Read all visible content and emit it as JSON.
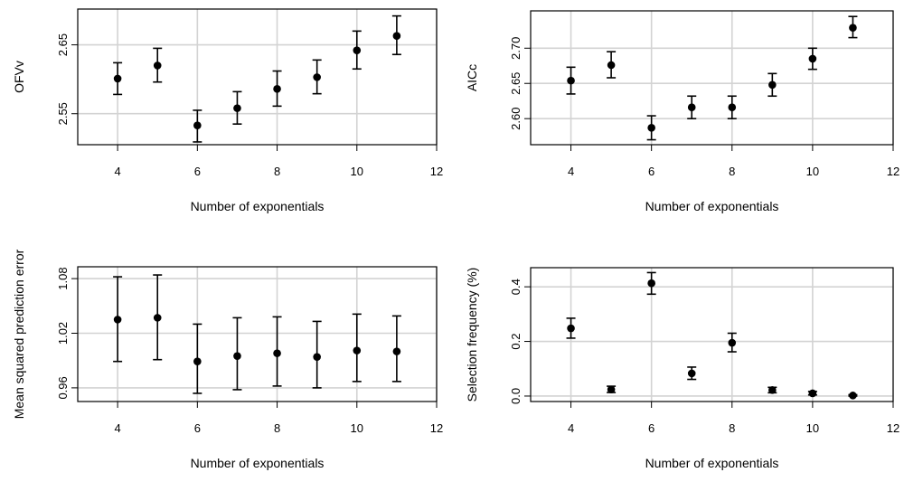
{
  "chart_data": [
    {
      "type": "scatter",
      "ylabel": "OFVv",
      "xlabel": "Number of exponentials",
      "xlim": [
        3,
        12
      ],
      "ylim": [
        2.505,
        2.702
      ],
      "xticks": [
        4,
        6,
        8,
        10,
        12
      ],
      "yticks": [
        2.55,
        2.65
      ],
      "ytick_labels": [
        "2.55",
        "2.65"
      ],
      "grid": true,
      "series": [
        {
          "x": [
            4,
            5,
            6,
            7,
            8,
            9,
            10,
            11
          ],
          "y": [
            2.601,
            2.62,
            2.533,
            2.558,
            2.586,
            2.603,
            2.642,
            2.663
          ],
          "lower": [
            2.578,
            2.596,
            2.509,
            2.535,
            2.561,
            2.579,
            2.615,
            2.636
          ],
          "upper": [
            2.624,
            2.645,
            2.555,
            2.582,
            2.612,
            2.628,
            2.67,
            2.692
          ]
        }
      ]
    },
    {
      "type": "scatter",
      "ylabel": "AICc",
      "xlabel": "Number of exponentials",
      "xlim": [
        3,
        12
      ],
      "ylim": [
        2.563,
        2.753
      ],
      "xticks": [
        4,
        6,
        8,
        10,
        12
      ],
      "yticks": [
        2.6,
        2.65,
        2.7
      ],
      "ytick_labels": [
        "2.60",
        "2.65",
        "2.70"
      ],
      "grid": true,
      "series": [
        {
          "x": [
            4,
            5,
            6,
            7,
            8,
            9,
            10,
            11
          ],
          "y": [
            2.654,
            2.676,
            2.587,
            2.616,
            2.616,
            2.648,
            2.685,
            2.729
          ],
          "lower": [
            2.635,
            2.658,
            2.57,
            2.6,
            2.6,
            2.632,
            2.67,
            2.715
          ],
          "upper": [
            2.673,
            2.695,
            2.604,
            2.632,
            2.632,
            2.664,
            2.7,
            2.745
          ]
        }
      ]
    },
    {
      "type": "scatter",
      "ylabel": "Mean squared prediction error",
      "xlabel": "Number of exponentials",
      "xlim": [
        3,
        12
      ],
      "ylim": [
        0.945,
        1.093
      ],
      "xticks": [
        4,
        6,
        8,
        10,
        12
      ],
      "yticks": [
        0.96,
        1.02,
        1.08
      ],
      "ytick_labels": [
        "0.96",
        "1.02",
        "1.08"
      ],
      "grid": true,
      "series": [
        {
          "x": [
            4,
            5,
            6,
            7,
            8,
            9,
            10,
            11
          ],
          "y": [
            1.035,
            1.037,
            0.989,
            0.995,
            0.998,
            0.994,
            1.001,
            1.0
          ],
          "lower": [
            0.989,
            0.991,
            0.954,
            0.958,
            0.962,
            0.96,
            0.967,
            0.967
          ],
          "upper": [
            1.082,
            1.084,
            1.03,
            1.037,
            1.038,
            1.033,
            1.041,
            1.039
          ]
        }
      ]
    },
    {
      "type": "scatter",
      "ylabel": "Selection frequency (%)",
      "xlabel": "Number of exponentials",
      "xlim": [
        3,
        12
      ],
      "ylim": [
        -0.02,
        0.47
      ],
      "xticks": [
        4,
        6,
        8,
        10,
        12
      ],
      "yticks": [
        0.0,
        0.2,
        0.4
      ],
      "ytick_labels": [
        "0.0",
        "0.2",
        "0.4"
      ],
      "grid": true,
      "series": [
        {
          "x": [
            4,
            5,
            6,
            7,
            8,
            9,
            10,
            11
          ],
          "y": [
            0.248,
            0.024,
            0.413,
            0.083,
            0.195,
            0.022,
            0.01,
            0.002
          ],
          "lower": [
            0.212,
            0.013,
            0.373,
            0.061,
            0.162,
            0.012,
            0.004,
            0.0
          ],
          "upper": [
            0.285,
            0.036,
            0.452,
            0.106,
            0.23,
            0.032,
            0.017,
            0.005
          ]
        }
      ]
    }
  ]
}
